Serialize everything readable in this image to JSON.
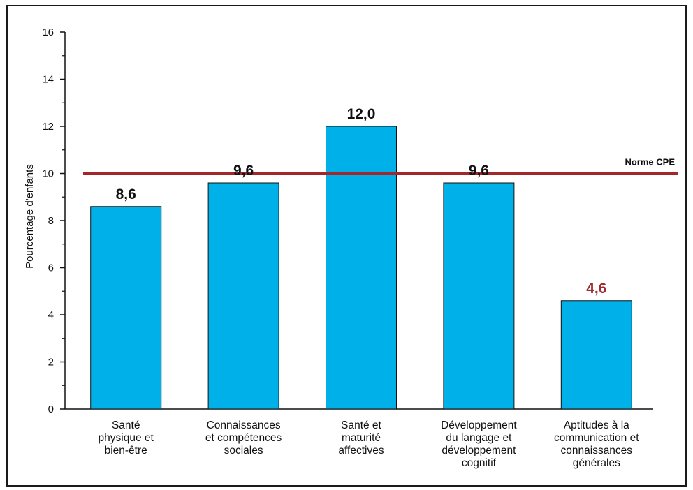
{
  "chart_data": {
    "type": "bar",
    "categories": [
      [
        "Santé",
        "physique et",
        "bien-être"
      ],
      [
        "Connaissances",
        "et compétences",
        "sociales"
      ],
      [
        "Santé et",
        "maturité",
        "affectives"
      ],
      [
        "Développement",
        "du langage et",
        "développement",
        "cognitif"
      ],
      [
        "Aptitudes à la",
        "communication et",
        "connaissances",
        "générales"
      ]
    ],
    "values": [
      8.6,
      9.6,
      12.0,
      9.6,
      4.6
    ],
    "value_labels": [
      "8,6",
      "9,6",
      "12,0",
      "9,6",
      "4,6"
    ],
    "value_label_colors": [
      "#111111",
      "#111111",
      "#111111",
      "#111111",
      "#9b2c31"
    ],
    "ylabel": "Pourcentage d'enfants",
    "ylim": [
      0,
      16
    ],
    "yticks": [
      0,
      2,
      4,
      6,
      8,
      10,
      12,
      14,
      16
    ],
    "reference_line": {
      "value": 10,
      "label": "Norme CPE",
      "color": "#a3262a"
    },
    "bar_color": "#00b0e8",
    "grid": false,
    "legend": "none"
  }
}
